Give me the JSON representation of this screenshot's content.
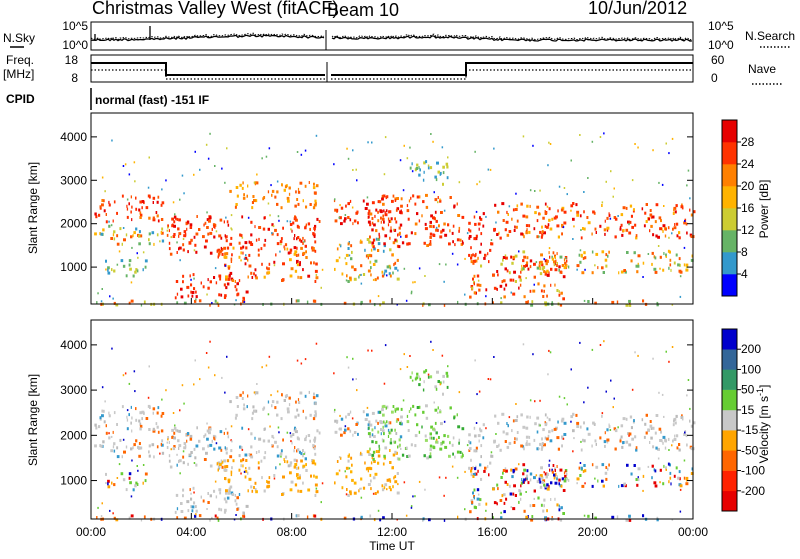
{
  "header": {
    "site": "Christmas Valley West (fitACF)",
    "beam": "Beam 10",
    "date": "10/Jun/2012"
  },
  "nsky_panel": {
    "left_label": "N.Sky",
    "left_ticks": [
      "10^5",
      "10^0"
    ],
    "right_label": "N.Search",
    "right_ticks": [
      "10^5",
      "10^0"
    ]
  },
  "freq_panel": {
    "left_label_line1": "Freq.",
    "left_label_line2": "[MHz]",
    "left_ticks": [
      "18",
      "8"
    ],
    "right_label": "Nave",
    "right_ticks": [
      "60",
      "0"
    ],
    "cpid_label": "CPID",
    "cpid_text": "normal (fast) -151 IF"
  },
  "chart_data": [
    {
      "type": "heatmap",
      "name": "power",
      "ylabel": "Slant Range [km]",
      "yticks": [
        "4000",
        "3000",
        "2000",
        "1000"
      ],
      "ytick_values": [
        4000,
        3000,
        2000,
        1000
      ],
      "ylim": [
        150,
        4550
      ],
      "xlim": [
        0,
        24
      ],
      "colorbar_label": "Power [dB]",
      "colorbar_ticks": [
        "28",
        "24",
        "20",
        "16",
        "12",
        "8",
        "4"
      ],
      "colorbar_colors": [
        "#e60000",
        "#ff3300",
        "#ff8000",
        "#ffb300",
        "#cccc33",
        "#66b366",
        "#3399cc",
        "#0000ff"
      ]
    },
    {
      "type": "heatmap",
      "name": "velocity",
      "ylabel": "Slant Range [km]",
      "yticks": [
        "4000",
        "3000",
        "2000",
        "1000"
      ],
      "ytick_values": [
        4000,
        3000,
        2000,
        1000
      ],
      "ylim": [
        150,
        4550
      ],
      "xlim": [
        0,
        24
      ],
      "xlabel": "Time UT",
      "xticks": [
        "00:00",
        "04:00",
        "08:00",
        "12:00",
        "16:00",
        "20:00",
        "00:00"
      ],
      "colorbar_label_main": "Velocity",
      "colorbar_label_unit": "[m s",
      "colorbar_label_exp": "-1",
      "colorbar_ticks": [
        "200",
        "100",
        "50",
        "15",
        "-15",
        "-50",
        "-100",
        "-200"
      ],
      "colorbar_colors": [
        "#0000cc",
        "#336699",
        "#339966",
        "#66cc33",
        "#c8c8c8",
        "#ffa500",
        "#ff6600",
        "#ff2200",
        "#e60000"
      ]
    }
  ]
}
